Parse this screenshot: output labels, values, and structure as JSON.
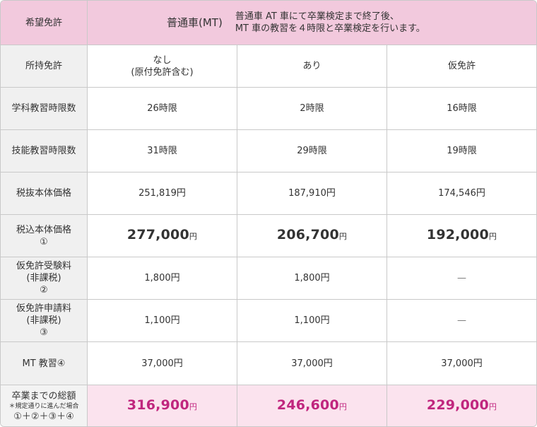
{
  "header": {
    "label": "希望免許",
    "course": "普通車(MT)",
    "note_line1": "普通車 AT 車にて卒業検定まで終了後、",
    "note_line2": "MT 車の教習を４時限と卒業検定を行います。"
  },
  "rows": [
    {
      "label_line1": "所持免許",
      "label_line2": "",
      "label_line3": "",
      "values": [
        {
          "line1": "なし",
          "line2": "(原付免許含む)",
          "unit": ""
        },
        {
          "line1": "あり",
          "line2": "",
          "unit": ""
        },
        {
          "line1": "仮免許",
          "line2": "",
          "unit": ""
        }
      ]
    },
    {
      "label_line1": "学科教習時限数",
      "label_line2": "",
      "label_line3": "",
      "values": [
        {
          "line1": "26時限",
          "line2": "",
          "unit": ""
        },
        {
          "line1": "2時限",
          "line2": "",
          "unit": ""
        },
        {
          "line1": "16時限",
          "line2": "",
          "unit": ""
        }
      ]
    },
    {
      "label_line1": "技能教習時限数",
      "label_line2": "",
      "label_line3": "",
      "values": [
        {
          "line1": "31時限",
          "line2": "",
          "unit": ""
        },
        {
          "line1": "29時限",
          "line2": "",
          "unit": ""
        },
        {
          "line1": "19時限",
          "line2": "",
          "unit": ""
        }
      ]
    },
    {
      "label_line1": "税抜本体価格",
      "label_line2": "",
      "label_line3": "",
      "values": [
        {
          "line1": "251,819円",
          "line2": "",
          "unit": ""
        },
        {
          "line1": "187,910円",
          "line2": "",
          "unit": ""
        },
        {
          "line1": "174,546円",
          "line2": "",
          "unit": ""
        }
      ]
    },
    {
      "label_line1": "税込本体価格",
      "label_line2": "①",
      "label_line3": "",
      "values": [
        {
          "line1": "277,000",
          "line2": "",
          "unit": "円"
        },
        {
          "line1": "206,700",
          "line2": "",
          "unit": "円"
        },
        {
          "line1": "192,000",
          "line2": "",
          "unit": "円"
        }
      ]
    },
    {
      "label_line1": "仮免許受験料",
      "label_line2": "(非課税)",
      "label_line3": "②",
      "values": [
        {
          "line1": "1,800円",
          "line2": "",
          "unit": ""
        },
        {
          "line1": "1,800円",
          "line2": "",
          "unit": ""
        },
        {
          "line1": "—",
          "line2": "",
          "unit": ""
        }
      ]
    },
    {
      "label_line1": "仮免許申請料",
      "label_line2": "(非課税)",
      "label_line3": "③",
      "values": [
        {
          "line1": "1,100円",
          "line2": "",
          "unit": ""
        },
        {
          "line1": "1,100円",
          "line2": "",
          "unit": ""
        },
        {
          "line1": "—",
          "line2": "",
          "unit": ""
        }
      ]
    },
    {
      "label_line1": "MT 教習④",
      "label_line2": "",
      "label_line3": "",
      "values": [
        {
          "line1": "37,000円",
          "line2": "",
          "unit": ""
        },
        {
          "line1": "37,000円",
          "line2": "",
          "unit": ""
        },
        {
          "line1": "37,000円",
          "line2": "",
          "unit": ""
        }
      ]
    }
  ],
  "total": {
    "label_line1": "卒業までの総額",
    "label_note": "＊規定通りに進んだ場合",
    "label_formula": "①＋②＋③＋④",
    "values": [
      {
        "amount": "316,900",
        "unit": "円"
      },
      {
        "amount": "246,600",
        "unit": "円"
      },
      {
        "amount": "229,000",
        "unit": "円"
      }
    ]
  },
  "colors": {
    "header_bg": "#f2c9dd",
    "label_bg": "#f0f0f0",
    "total_bg": "#fbe3ee",
    "total_text": "#c0267e",
    "border": "#c9c9c9"
  }
}
